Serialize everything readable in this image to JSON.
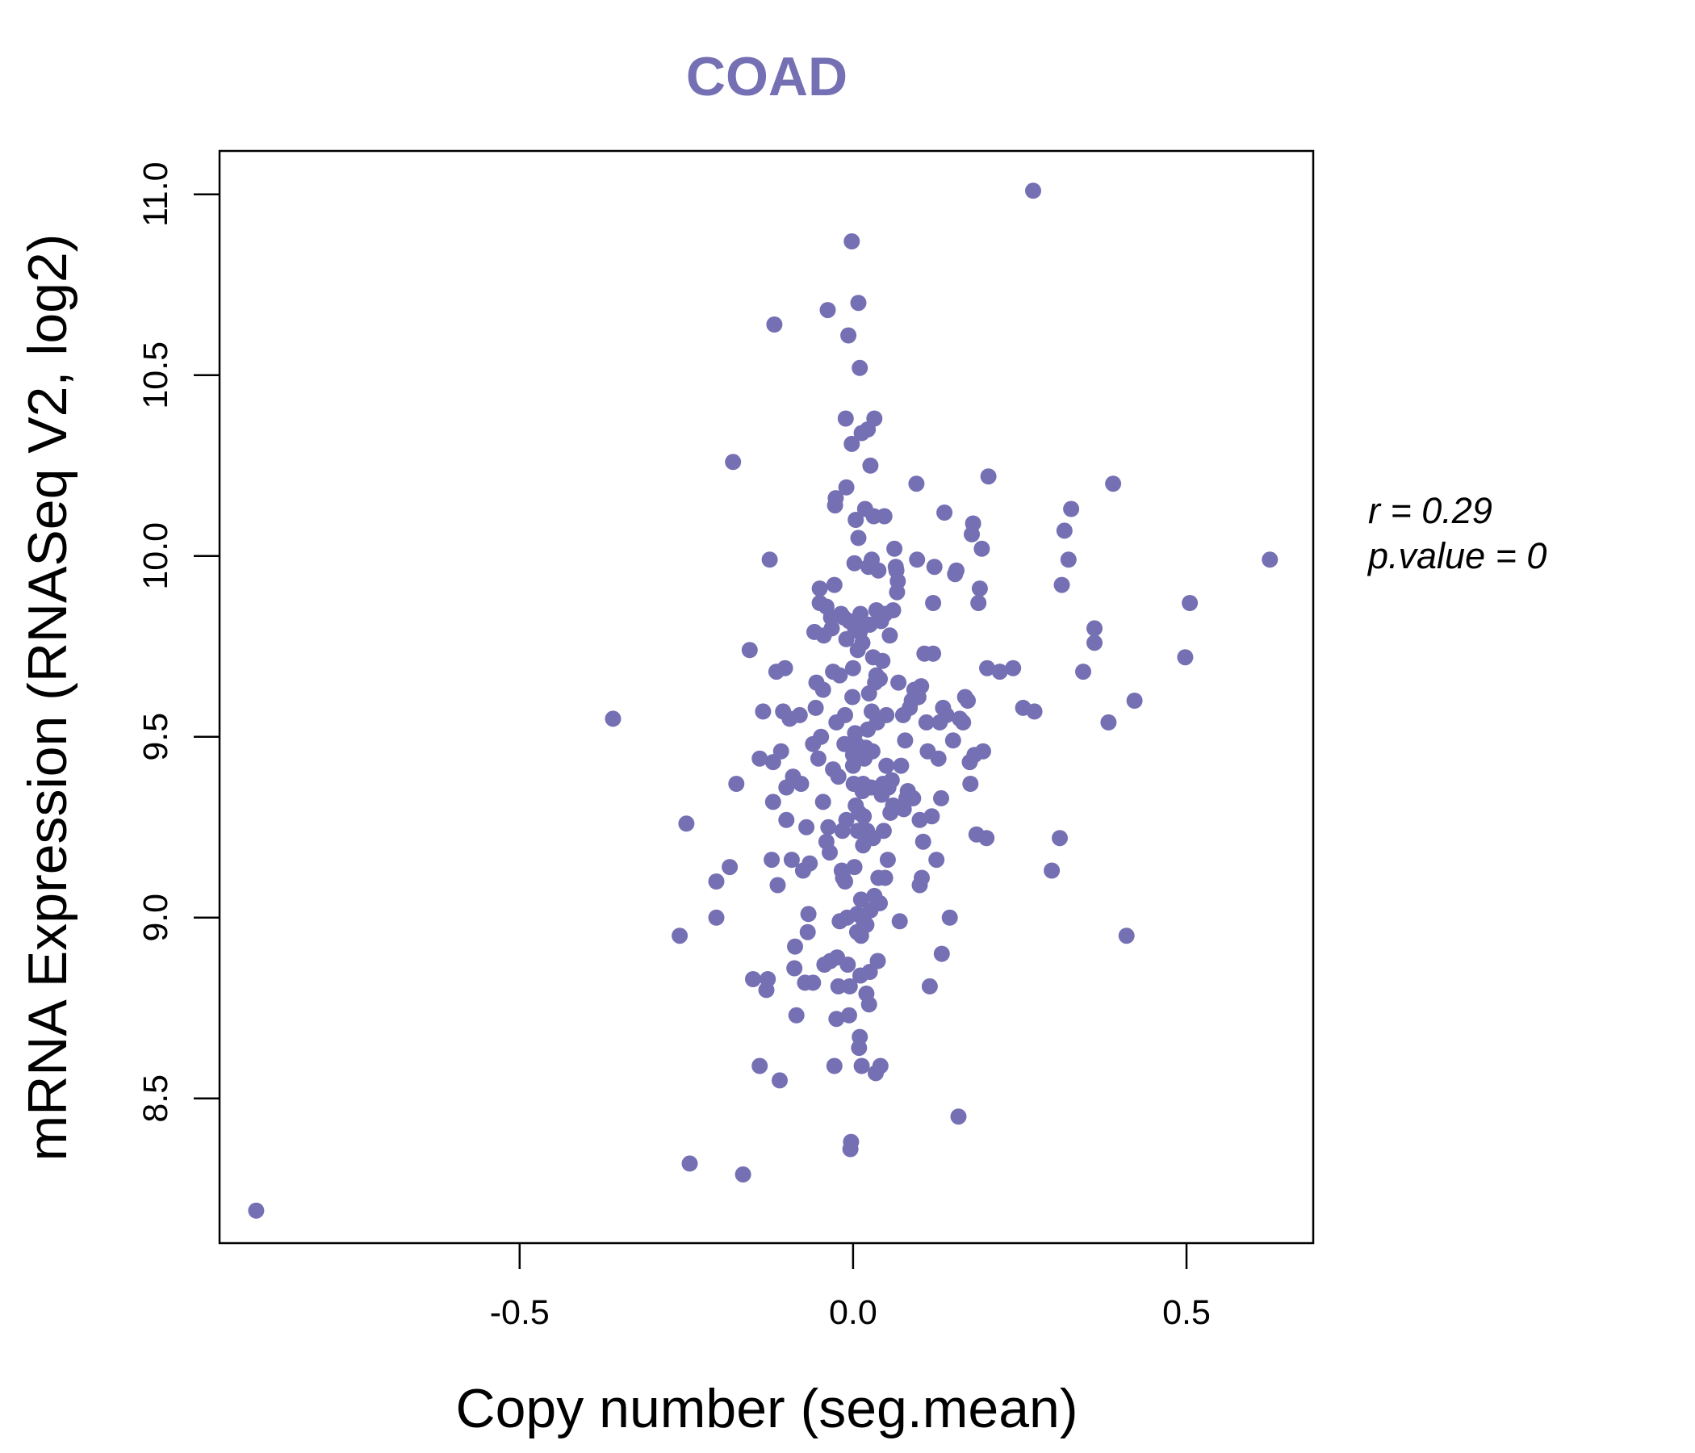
{
  "colors": {
    "point": "#7570b3",
    "title": "#7570b3",
    "frame": "#000000"
  },
  "chart_data": {
    "type": "scatter",
    "title": "COAD",
    "xlabel": "Copy number (seg.mean)",
    "ylabel": "mRNA Expression (RNASeq V2, log2)",
    "xlim": [
      -0.95,
      0.69
    ],
    "ylim": [
      8.1,
      11.12
    ],
    "xticks": [
      -0.5,
      0.0,
      0.5
    ],
    "xtick_labels": [
      "-0.5",
      "0.0",
      "0.5"
    ],
    "yticks": [
      8.5,
      9.0,
      9.5,
      10.0,
      10.5,
      11.0
    ],
    "ytick_labels": [
      "8.5",
      "9.0",
      "9.5",
      "10.0",
      "10.5",
      "11.0"
    ],
    "stats": {
      "r_line": "r = 0.29",
      "p_line": "p.value = 0"
    },
    "points": [
      [
        -0.895,
        8.19
      ],
      [
        -0.36,
        9.55
      ],
      [
        -0.26,
        8.95
      ],
      [
        -0.25,
        9.26
      ],
      [
        -0.245,
        8.32
      ],
      [
        -0.205,
        9.1
      ],
      [
        -0.205,
        9.0
      ],
      [
        -0.185,
        9.14
      ],
      [
        -0.18,
        10.26
      ],
      [
        -0.175,
        9.37
      ],
      [
        -0.165,
        8.29
      ],
      [
        -0.155,
        9.74
      ],
      [
        -0.15,
        8.83
      ],
      [
        -0.14,
        8.59
      ],
      [
        -0.14,
        9.44
      ],
      [
        -0.135,
        9.57
      ],
      [
        -0.13,
        8.8
      ],
      [
        -0.128,
        8.83
      ],
      [
        -0.125,
        9.99
      ],
      [
        -0.122,
        9.16
      ],
      [
        -0.12,
        9.43
      ],
      [
        -0.12,
        9.32
      ],
      [
        -0.118,
        10.64
      ],
      [
        -0.115,
        9.68
      ],
      [
        -0.113,
        9.09
      ],
      [
        -0.11,
        8.55
      ],
      [
        -0.108,
        9.46
      ],
      [
        -0.105,
        9.57
      ],
      [
        -0.102,
        9.69
      ],
      [
        -0.1,
        9.36
      ],
      [
        -0.1,
        9.27
      ],
      [
        -0.095,
        9.55
      ],
      [
        -0.092,
        9.16
      ],
      [
        -0.09,
        9.39
      ],
      [
        -0.088,
        8.86
      ],
      [
        -0.087,
        8.92
      ],
      [
        -0.085,
        8.73
      ],
      [
        -0.08,
        9.56
      ],
      [
        -0.078,
        9.37
      ],
      [
        -0.075,
        9.13
      ],
      [
        -0.072,
        8.82
      ],
      [
        -0.07,
        9.25
      ],
      [
        -0.068,
        8.96
      ],
      [
        -0.067,
        9.01
      ],
      [
        -0.065,
        9.15
      ],
      [
        -0.06,
        9.48
      ],
      [
        -0.06,
        8.82
      ],
      [
        -0.058,
        9.79
      ],
      [
        -0.056,
        9.58
      ],
      [
        -0.055,
        9.65
      ],
      [
        -0.052,
        9.44
      ],
      [
        -0.05,
        9.87
      ],
      [
        -0.05,
        9.91
      ],
      [
        -0.048,
        9.5
      ],
      [
        -0.045,
        9.63
      ],
      [
        -0.045,
        9.32
      ],
      [
        -0.044,
        9.78
      ],
      [
        -0.043,
        8.87
      ],
      [
        -0.04,
        9.86
      ],
      [
        -0.04,
        9.21
      ],
      [
        -0.038,
        10.68
      ],
      [
        -0.037,
        9.25
      ],
      [
        -0.035,
        9.18
      ],
      [
        -0.034,
        8.88
      ],
      [
        -0.033,
        9.83
      ],
      [
        -0.032,
        9.8
      ],
      [
        -0.03,
        9.68
      ],
      [
        -0.03,
        9.41
      ],
      [
        -0.028,
        8.59
      ],
      [
        -0.028,
        9.92
      ],
      [
        -0.027,
        10.14
      ],
      [
        -0.026,
        10.16
      ],
      [
        -0.025,
        8.72
      ],
      [
        -0.025,
        9.54
      ],
      [
        -0.024,
        8.89
      ],
      [
        -0.022,
        9.39
      ],
      [
        -0.022,
        8.81
      ],
      [
        -0.02,
        9.67
      ],
      [
        -0.02,
        8.99
      ],
      [
        -0.018,
        9.84
      ],
      [
        -0.017,
        9.13
      ],
      [
        -0.016,
        9.24
      ],
      [
        -0.015,
        9.11
      ],
      [
        -0.014,
        9.83
      ],
      [
        -0.013,
        9.48
      ],
      [
        -0.012,
        9.56
      ],
      [
        -0.012,
        9.1
      ],
      [
        -0.011,
        10.38
      ],
      [
        -0.01,
        9.77
      ],
      [
        -0.01,
        9.27
      ],
      [
        -0.01,
        10.19
      ],
      [
        -0.009,
        9.0
      ],
      [
        -0.008,
        8.87
      ],
      [
        -0.007,
        10.61
      ],
      [
        -0.006,
        9.82
      ],
      [
        -0.006,
        8.73
      ],
      [
        -0.005,
        8.81
      ],
      [
        -0.004,
        8.36
      ],
      [
        -0.003,
        8.38
      ],
      [
        -0.002,
        10.87
      ],
      [
        -0.002,
        10.31
      ],
      [
        -0.001,
        9.61
      ],
      [
        0.0,
        9.42
      ],
      [
        0.0,
        9.69
      ],
      [
        0.0,
        9.45
      ],
      [
        0.001,
        9.37
      ],
      [
        0.002,
        9.98
      ],
      [
        0.002,
        9.14
      ],
      [
        0.003,
        9.8
      ],
      [
        0.003,
        9.51
      ],
      [
        0.004,
        9.31
      ],
      [
        0.004,
        10.1
      ],
      [
        0.005,
        9.48
      ],
      [
        0.005,
        9.46
      ],
      [
        0.006,
        8.96
      ],
      [
        0.006,
        9.01
      ],
      [
        0.007,
        9.24
      ],
      [
        0.007,
        9.74
      ],
      [
        0.008,
        10.7
      ],
      [
        0.008,
        10.05
      ],
      [
        0.009,
        9.29
      ],
      [
        0.009,
        8.64
      ],
      [
        0.01,
        8.67
      ],
      [
        0.01,
        9.79
      ],
      [
        0.01,
        10.52
      ],
      [
        0.011,
        9.84
      ],
      [
        0.011,
        8.84
      ],
      [
        0.012,
        8.95
      ],
      [
        0.012,
        9.05
      ],
      [
        0.013,
        10.34
      ],
      [
        0.013,
        8.59
      ],
      [
        0.014,
        9.35
      ],
      [
        0.014,
        9.76
      ],
      [
        0.015,
        9.2
      ],
      [
        0.015,
        9.37
      ],
      [
        0.016,
        9.28
      ],
      [
        0.016,
        8.99
      ],
      [
        0.017,
        9.44
      ],
      [
        0.018,
        9.81
      ],
      [
        0.018,
        10.13
      ],
      [
        0.019,
        9.47
      ],
      [
        0.02,
        8.79
      ],
      [
        0.02,
        8.98
      ],
      [
        0.021,
        9.24
      ],
      [
        0.022,
        10.35
      ],
      [
        0.022,
        9.52
      ],
      [
        0.023,
        9.97
      ],
      [
        0.024,
        9.62
      ],
      [
        0.024,
        8.76
      ],
      [
        0.025,
        9.81
      ],
      [
        0.025,
        8.85
      ],
      [
        0.026,
        10.25
      ],
      [
        0.026,
        9.02
      ],
      [
        0.027,
        9.36
      ],
      [
        0.028,
        9.99
      ],
      [
        0.028,
        9.57
      ],
      [
        0.029,
        9.46
      ],
      [
        0.03,
        9.72
      ],
      [
        0.03,
        9.22
      ],
      [
        0.031,
        10.11
      ],
      [
        0.032,
        10.38
      ],
      [
        0.032,
        9.06
      ],
      [
        0.033,
        9.65
      ],
      [
        0.034,
        8.57
      ],
      [
        0.035,
        9.85
      ],
      [
        0.035,
        9.67
      ],
      [
        0.036,
        9.54
      ],
      [
        0.037,
        8.88
      ],
      [
        0.038,
        9.96
      ],
      [
        0.038,
        9.11
      ],
      [
        0.04,
        9.04
      ],
      [
        0.04,
        9.66
      ],
      [
        0.041,
        8.59
      ],
      [
        0.042,
        9.82
      ],
      [
        0.043,
        9.34
      ],
      [
        0.044,
        9.71
      ],
      [
        0.045,
        9.37
      ],
      [
        0.046,
        9.24
      ],
      [
        0.047,
        10.11
      ],
      [
        0.048,
        9.84
      ],
      [
        0.048,
        9.11
      ],
      [
        0.05,
        9.42
      ],
      [
        0.05,
        9.56
      ],
      [
        0.052,
        9.16
      ],
      [
        0.053,
        9.36
      ],
      [
        0.055,
        9.78
      ],
      [
        0.056,
        9.29
      ],
      [
        0.058,
        9.38
      ],
      [
        0.06,
        9.31
      ],
      [
        0.06,
        9.85
      ],
      [
        0.062,
        10.02
      ],
      [
        0.064,
        9.97
      ],
      [
        0.065,
        9.96
      ],
      [
        0.066,
        9.9
      ],
      [
        0.067,
        9.93
      ],
      [
        0.068,
        9.65
      ],
      [
        0.07,
        8.99
      ],
      [
        0.072,
        9.42
      ],
      [
        0.075,
        9.56
      ],
      [
        0.076,
        9.3
      ],
      [
        0.078,
        9.49
      ],
      [
        0.08,
        9.33
      ],
      [
        0.082,
        9.35
      ],
      [
        0.085,
        9.58
      ],
      [
        0.088,
        9.6
      ],
      [
        0.09,
        9.33
      ],
      [
        0.092,
        9.63
      ],
      [
        0.095,
        10.2
      ],
      [
        0.096,
        9.99
      ],
      [
        0.098,
        9.61
      ],
      [
        0.1,
        9.27
      ],
      [
        0.1,
        9.09
      ],
      [
        0.102,
        9.64
      ],
      [
        0.103,
        9.11
      ],
      [
        0.105,
        9.21
      ],
      [
        0.107,
        9.73
      ],
      [
        0.11,
        9.54
      ],
      [
        0.112,
        9.46
      ],
      [
        0.115,
        8.81
      ],
      [
        0.118,
        9.28
      ],
      [
        0.12,
        9.73
      ],
      [
        0.12,
        9.87
      ],
      [
        0.122,
        9.97
      ],
      [
        0.125,
        9.16
      ],
      [
        0.128,
        9.44
      ],
      [
        0.13,
        9.54
      ],
      [
        0.132,
        9.33
      ],
      [
        0.133,
        8.9
      ],
      [
        0.135,
        9.58
      ],
      [
        0.137,
        10.12
      ],
      [
        0.14,
        9.56
      ],
      [
        0.145,
        9.0
      ],
      [
        0.15,
        9.49
      ],
      [
        0.153,
        9.95
      ],
      [
        0.155,
        9.96
      ],
      [
        0.158,
        8.45
      ],
      [
        0.16,
        9.55
      ],
      [
        0.165,
        9.54
      ],
      [
        0.168,
        9.61
      ],
      [
        0.172,
        9.6
      ],
      [
        0.175,
        9.43
      ],
      [
        0.176,
        9.37
      ],
      [
        0.178,
        10.06
      ],
      [
        0.18,
        10.09
      ],
      [
        0.182,
        9.45
      ],
      [
        0.185,
        9.23
      ],
      [
        0.188,
        9.87
      ],
      [
        0.19,
        9.91
      ],
      [
        0.193,
        10.02
      ],
      [
        0.195,
        9.46
      ],
      [
        0.2,
        9.22
      ],
      [
        0.201,
        9.69
      ],
      [
        0.203,
        10.22
      ],
      [
        0.22,
        9.68
      ],
      [
        0.24,
        9.69
      ],
      [
        0.255,
        9.58
      ],
      [
        0.27,
        11.01
      ],
      [
        0.272,
        9.57
      ],
      [
        0.298,
        9.13
      ],
      [
        0.31,
        9.22
      ],
      [
        0.313,
        9.92
      ],
      [
        0.317,
        10.07
      ],
      [
        0.323,
        9.99
      ],
      [
        0.327,
        10.13
      ],
      [
        0.345,
        9.68
      ],
      [
        0.362,
        9.8
      ],
      [
        0.362,
        9.76
      ],
      [
        0.383,
        9.54
      ],
      [
        0.39,
        10.2
      ],
      [
        0.41,
        8.95
      ],
      [
        0.422,
        9.6
      ],
      [
        0.498,
        9.72
      ],
      [
        0.505,
        9.87
      ],
      [
        0.625,
        9.99
      ]
    ]
  }
}
